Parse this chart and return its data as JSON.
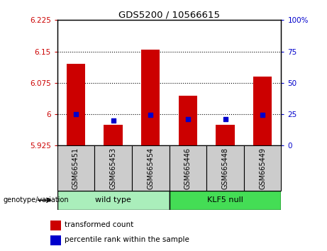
{
  "title": "GDS5200 / 10566615",
  "samples": [
    "GSM665451",
    "GSM665453",
    "GSM665454",
    "GSM665446",
    "GSM665448",
    "GSM665449"
  ],
  "group_labels": [
    "wild type",
    "KLF5 null"
  ],
  "red_values": [
    6.12,
    5.975,
    6.155,
    6.045,
    5.975,
    6.09
  ],
  "blue_values": [
    6.0,
    5.985,
    5.998,
    5.988,
    5.988,
    5.998
  ],
  "ylim_left": [
    5.925,
    6.225
  ],
  "ylim_right": [
    0,
    100
  ],
  "yticks_left": [
    5.925,
    6.0,
    6.075,
    6.15,
    6.225
  ],
  "ytick_labels_left": [
    "5.925",
    "6",
    "6.075",
    "6.15",
    "6.225"
  ],
  "yticks_right": [
    0,
    25,
    50,
    75,
    100
  ],
  "ytick_labels_right": [
    "0",
    "25",
    "50",
    "75",
    "100%"
  ],
  "hlines": [
    6.0,
    6.075,
    6.15
  ],
  "red_color": "#CC0000",
  "blue_color": "#0000CC",
  "wt_color": "#AAEEBB",
  "klf_color": "#44DD55",
  "gray_color": "#CCCCCC",
  "bar_width": 0.5,
  "group_arrow_label": "genotype/variation",
  "legend_items": [
    "transformed count",
    "percentile rank within the sample"
  ]
}
